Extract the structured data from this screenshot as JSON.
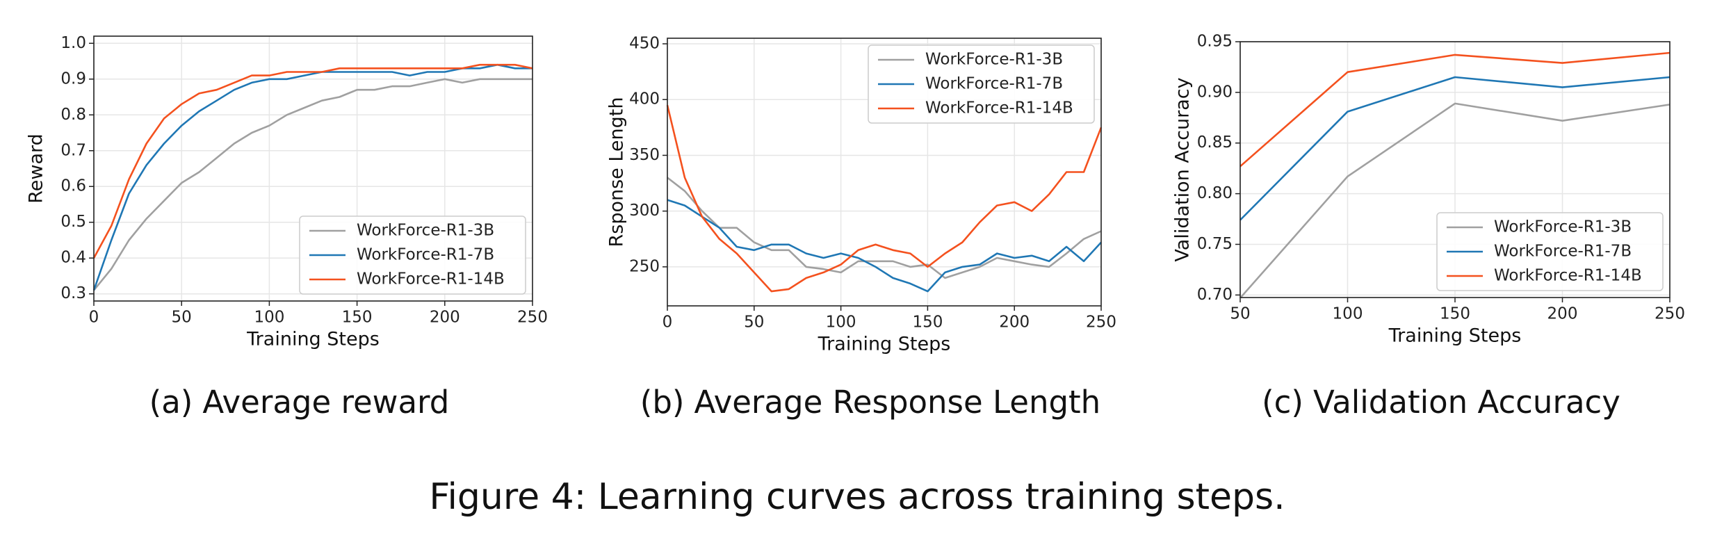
{
  "chart_data": [
    {
      "type": "line",
      "label": "(a)",
      "caption": "Average reward",
      "xlabel": "Training Steps",
      "ylabel": "Reward",
      "x": [
        0,
        10,
        20,
        30,
        40,
        50,
        60,
        70,
        80,
        90,
        100,
        110,
        120,
        130,
        140,
        150,
        160,
        170,
        180,
        190,
        200,
        210,
        220,
        230,
        240,
        250
      ],
      "series": [
        {
          "name": "WorkForce-R1-3B",
          "color": "#a0a0a0",
          "values": [
            0.31,
            0.37,
            0.45,
            0.51,
            0.56,
            0.61,
            0.64,
            0.68,
            0.72,
            0.75,
            0.77,
            0.8,
            0.82,
            0.84,
            0.85,
            0.87,
            0.87,
            0.88,
            0.88,
            0.89,
            0.9,
            0.89,
            0.9,
            0.9,
            0.9,
            0.9
          ]
        },
        {
          "name": "WorkForce-R1-7B",
          "color": "#1f77b4",
          "values": [
            0.31,
            0.45,
            0.58,
            0.66,
            0.72,
            0.77,
            0.81,
            0.84,
            0.87,
            0.89,
            0.9,
            0.9,
            0.91,
            0.92,
            0.92,
            0.92,
            0.92,
            0.92,
            0.91,
            0.92,
            0.92,
            0.93,
            0.93,
            0.94,
            0.93,
            0.93
          ]
        },
        {
          "name": "WorkForce-R1-14B",
          "color": "#f4511e",
          "values": [
            0.4,
            0.49,
            0.62,
            0.72,
            0.79,
            0.83,
            0.86,
            0.87,
            0.89,
            0.91,
            0.91,
            0.92,
            0.92,
            0.92,
            0.93,
            0.93,
            0.93,
            0.93,
            0.93,
            0.93,
            0.93,
            0.93,
            0.94,
            0.94,
            0.94,
            0.93
          ]
        }
      ],
      "xlim": [
        0,
        250
      ],
      "xticks": [
        0,
        50,
        100,
        150,
        200,
        250
      ],
      "ylim": [
        0.28,
        1.02
      ],
      "yticks": [
        0.3,
        0.4,
        0.5,
        0.6,
        0.7,
        0.8,
        0.9,
        {
          "value": 1,
          "label": "1.0"
        }
      ],
      "grid": true,
      "legend": "lower right"
    },
    {
      "type": "line",
      "label": "(b)",
      "caption": "Average Response Length",
      "xlabel": "Training Steps",
      "ylabel": "Rsponse Length",
      "x": [
        0,
        10,
        20,
        30,
        40,
        50,
        60,
        70,
        80,
        90,
        100,
        110,
        120,
        130,
        140,
        150,
        160,
        170,
        180,
        190,
        200,
        210,
        220,
        230,
        240,
        250
      ],
      "series": [
        {
          "name": "WorkForce-R1-3B",
          "color": "#a0a0a0",
          "values": [
            330,
            318,
            300,
            285,
            285,
            272,
            265,
            265,
            250,
            248,
            245,
            255,
            255,
            255,
            250,
            252,
            240,
            245,
            250,
            258,
            255,
            252,
            250,
            262,
            275,
            282
          ]
        },
        {
          "name": "WorkForce-R1-7B",
          "color": "#1f77b4",
          "values": [
            310,
            305,
            295,
            285,
            268,
            265,
            270,
            270,
            262,
            258,
            262,
            258,
            250,
            240,
            235,
            228,
            245,
            250,
            252,
            262,
            258,
            260,
            255,
            268,
            255,
            272
          ]
        },
        {
          "name": "WorkForce-R1-14B",
          "color": "#f4511e",
          "values": [
            395,
            330,
            295,
            275,
            262,
            245,
            228,
            230,
            240,
            245,
            252,
            265,
            270,
            265,
            262,
            250,
            262,
            272,
            290,
            305,
            308,
            300,
            315,
            335,
            335,
            375
          ]
        }
      ],
      "xlim": [
        0,
        250
      ],
      "xticks": [
        0,
        50,
        100,
        150,
        200,
        250
      ],
      "ylim": [
        215,
        455
      ],
      "yticks": [
        250,
        300,
        350,
        400,
        450
      ],
      "grid": true,
      "legend": "upper right"
    },
    {
      "type": "line",
      "label": "(c)",
      "caption": "Validation Accuracy",
      "xlabel": "Training Steps",
      "ylabel": "Validation Accuracy",
      "x": [
        50,
        100,
        150,
        200,
        250
      ],
      "series": [
        {
          "name": "WorkForce-R1-3B",
          "color": "#a0a0a0",
          "values": [
            0.697,
            0.817,
            0.889,
            0.872,
            0.888
          ]
        },
        {
          "name": "WorkForce-R1-7B",
          "color": "#1f77b4",
          "values": [
            0.774,
            0.881,
            0.915,
            0.905,
            0.915
          ]
        },
        {
          "name": "WorkForce-R1-14B",
          "color": "#f4511e",
          "values": [
            0.827,
            0.92,
            0.937,
            0.929,
            0.939
          ]
        }
      ],
      "xlim": [
        50,
        250
      ],
      "xticks": [
        50,
        100,
        150,
        200,
        250
      ],
      "ylim": [
        0.6975,
        0.95
      ],
      "yticks": [
        {
          "value": 0.7,
          "label": "0.70"
        },
        0.75,
        {
          "value": 0.8,
          "label": "0.80"
        },
        0.85,
        {
          "value": 0.9,
          "label": "0.90"
        },
        0.95
      ],
      "grid": true,
      "legend": "lower right"
    }
  ],
  "caption": "Figure 4: Learning curves across training steps."
}
